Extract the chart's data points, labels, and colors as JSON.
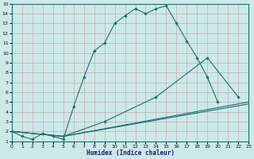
{
  "xlabel": "Humidex (Indice chaleur)",
  "xlim": [
    0,
    23
  ],
  "ylim": [
    1,
    15
  ],
  "xticks": [
    0,
    1,
    2,
    3,
    4,
    5,
    6,
    7,
    8,
    9,
    10,
    11,
    12,
    13,
    14,
    15,
    16,
    17,
    18,
    19,
    20,
    21,
    22,
    23
  ],
  "yticks": [
    1,
    2,
    3,
    4,
    5,
    6,
    7,
    8,
    9,
    10,
    11,
    12,
    13,
    14,
    15
  ],
  "bg_color": "#cce9e9",
  "grid_color": "#cc9999",
  "line_color": "#1a7070",
  "line1_x": [
    0,
    1,
    2,
    3,
    4,
    5,
    6,
    7,
    8,
    9,
    10,
    11,
    12,
    13,
    14,
    15,
    16,
    17,
    18,
    19,
    20
  ],
  "line1_y": [
    2,
    1.5,
    1.2,
    1.8,
    1.5,
    1.2,
    4.5,
    7.5,
    10.2,
    11.0,
    13.0,
    13.8,
    14.5,
    14.0,
    14.5,
    14.8,
    13.0,
    11.2,
    9.5,
    7.5,
    5.0
  ],
  "line2_x": [
    0,
    5,
    9,
    14,
    19,
    22
  ],
  "line2_y": [
    2,
    1.5,
    3.0,
    5.5,
    9.5,
    5.5
  ],
  "line3_x": [
    0,
    5,
    23
  ],
  "line3_y": [
    2,
    1.5,
    5.0
  ],
  "line4_x": [
    0,
    5,
    23
  ],
  "line4_y": [
    2,
    1.5,
    4.8
  ]
}
